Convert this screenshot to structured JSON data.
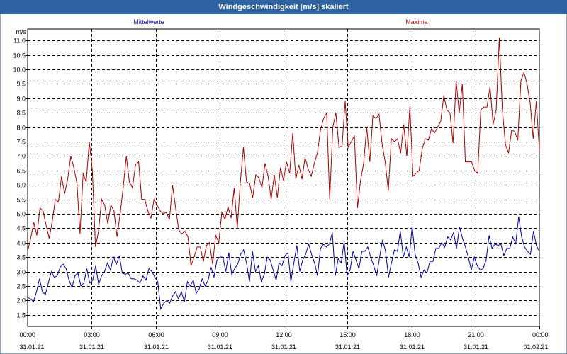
{
  "window": {
    "title": "Windgeschwindigkeit [m/s] skaliert"
  },
  "chart_data": {
    "type": "line",
    "yunit": "m/s",
    "ylim": [
      1.1,
      11.4
    ],
    "yticks": [
      "1,5",
      "2,0",
      "2,5",
      "3,0",
      "3,5",
      "4,0",
      "4,5",
      "5,0",
      "5,5",
      "6,0",
      "6,5",
      "7,0",
      "7,5",
      "8,0",
      "8,5",
      "9,0",
      "9,5",
      "10,0",
      "10,5",
      "11,0"
    ],
    "xlim_hours": [
      0,
      24
    ],
    "xticks": [
      {
        "h": 0,
        "time": "00:00",
        "date": "31.01.21"
      },
      {
        "h": 3,
        "time": "03:00",
        "date": "31.01.21"
      },
      {
        "h": 6,
        "time": "06:00",
        "date": "31.01.21"
      },
      {
        "h": 9,
        "time": "09:00",
        "date": "31.01.21"
      },
      {
        "h": 12,
        "time": "12:00",
        "date": "31.01.21"
      },
      {
        "h": 15,
        "time": "15:00",
        "date": "31.01.21"
      },
      {
        "h": 18,
        "time": "18:00",
        "date": "31.01.21"
      },
      {
        "h": 21,
        "time": "21:00",
        "date": "31.01.21"
      },
      {
        "h": 24,
        "time": "00:00",
        "date": "01.02.21"
      }
    ],
    "grid": true,
    "series": [
      {
        "name": "Mittelwerte",
        "color": "#0000aa",
        "values": [
          2.1,
          2.05,
          1.95,
          2.3,
          2.75,
          2.3,
          2.2,
          2.6,
          3.0,
          2.8,
          2.85,
          3.15,
          3.25,
          3.1,
          2.7,
          2.45,
          2.85,
          2.95,
          2.5,
          2.6,
          3.1,
          2.6,
          2.7,
          3.2,
          2.55,
          2.85,
          3.0,
          3.3,
          3.05,
          3.5,
          3.25,
          3.55,
          2.95,
          2.9,
          2.95,
          2.75,
          2.75,
          2.7,
          2.6,
          2.85,
          2.7,
          3.1,
          3.0,
          2.8,
          2.65,
          1.7,
          1.9,
          2.0,
          1.9,
          2.15,
          2.3,
          2.05,
          2.3,
          1.95,
          2.65,
          2.5,
          2.7,
          2.25,
          2.4,
          2.75,
          2.5,
          2.7,
          3.15,
          2.8,
          3.4,
          3.5,
          3.5,
          3.0,
          3.65,
          2.9,
          3.1,
          3.25,
          3.6,
          3.75,
          3.3,
          2.65,
          3.7,
          3.0,
          3.2,
          2.65,
          2.9,
          3.5,
          3.4,
          3.05,
          2.7,
          3.3,
          3.2,
          3.55,
          3.65,
          2.65,
          3.3,
          3.9,
          3.0,
          3.4,
          3.6,
          3.95,
          3.6,
          3.3,
          2.85,
          3.8,
          3.95,
          3.85,
          3.95,
          4.35,
          2.85,
          3.45,
          3.3,
          4.05,
          2.85,
          3.05,
          3.7,
          3.4,
          3.1,
          3.7,
          3.7,
          3.85,
          3.5,
          3.2,
          2.85,
          3.5,
          4.1,
          3.7,
          2.8,
          3.3,
          3.75,
          3.7,
          4.4,
          3.5,
          3.85,
          3.5,
          4.55,
          3.6,
          3.3,
          2.8,
          3.05,
          2.95,
          3.35,
          3.35,
          3.8,
          3.8,
          4.0,
          3.85,
          4.2,
          4.1,
          4.35,
          3.8,
          4.55,
          4.15,
          3.85,
          3.5,
          3.05,
          3.5,
          3.2,
          3.05,
          3.1,
          3.4,
          4.25,
          3.8,
          3.95,
          3.9,
          3.95,
          3.55,
          3.8,
          3.8,
          4.2,
          3.95,
          4.9,
          4.2,
          3.85,
          3.7,
          3.6,
          4.4,
          3.9,
          3.7
        ]
      },
      {
        "name": "Maxima",
        "color": "#aa0000",
        "values": [
          3.7,
          4.15,
          4.7,
          4.25,
          5.2,
          5.1,
          4.6,
          4.15,
          4.75,
          5.5,
          5.4,
          6.3,
          5.7,
          6.2,
          7.0,
          6.6,
          6.05,
          4.3,
          6.4,
          6.1,
          7.5,
          6.5,
          3.85,
          4.4,
          5.5,
          5.3,
          4.65,
          5.3,
          5.1,
          4.2,
          5.0,
          5.9,
          7.0,
          6.1,
          5.9,
          6.7,
          6.8,
          5.5,
          5.5,
          5.1,
          4.85,
          5.5,
          5.3,
          5.1,
          5.0,
          5.05,
          4.8,
          6.0,
          5.2,
          4.45,
          4.3,
          4.4,
          4.2,
          3.2,
          3.5,
          3.85,
          3.85,
          3.35,
          3.9,
          4.0,
          3.25,
          4.25,
          4.0,
          5.05,
          4.8,
          5.25,
          4.85,
          5.9,
          4.5,
          6.1,
          7.3,
          6.1,
          6.05,
          5.55,
          6.35,
          6.25,
          5.9,
          6.75,
          6.3,
          5.5,
          6.35,
          5.55,
          6.6,
          6.15,
          6.8,
          6.4,
          7.8,
          6.2,
          6.7,
          6.2,
          6.95,
          6.55,
          6.3,
          6.75,
          7.1,
          7.9,
          8.3,
          8.5,
          5.5,
          8.0,
          8.5,
          7.3,
          7.35,
          8.9,
          7.3,
          7.5,
          7.7,
          5.2,
          6.15,
          6.75,
          8.0,
          6.8,
          8.4,
          8.3,
          8.45,
          7.4,
          6.8,
          5.8,
          7.6,
          7.5,
          7.6,
          7.1,
          8.1,
          7.0,
          8.7,
          6.3,
          6.4,
          6.5,
          7.25,
          7.6,
          7.55,
          7.95,
          7.8,
          8.0,
          8.2,
          9.1,
          8.6,
          8.5,
          7.45,
          9.6,
          8.5,
          9.5,
          6.8,
          6.8,
          6.8,
          6.5,
          6.4,
          8.6,
          8.7,
          8.7,
          9.4,
          8.1,
          8.6,
          11.1,
          8.6,
          7.4,
          7.1,
          7.9,
          7.85,
          7.55,
          9.6,
          9.9,
          9.5,
          8.85,
          7.6,
          8.9,
          7.2
        ]
      }
    ]
  }
}
